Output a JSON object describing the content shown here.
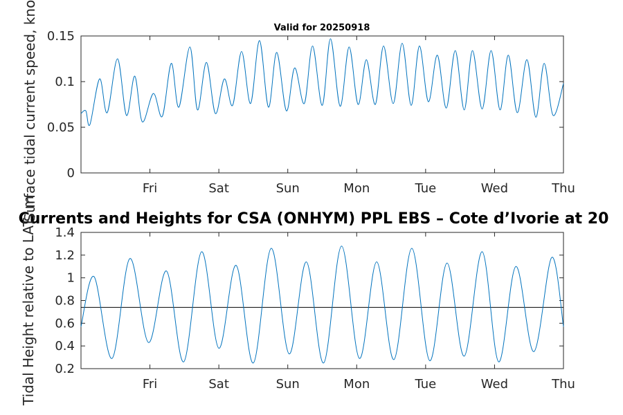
{
  "chart_data": [
    {
      "type": "line",
      "title": "Valid for 20250918",
      "ylabel": "Surface tidal current speed, knots",
      "xtick_labels": [
        "Fri",
        "Sat",
        "Sun",
        "Mon",
        "Tue",
        "Wed",
        "Thu"
      ],
      "xlim": [
        0,
        7
      ],
      "ylim": [
        0,
        0.15
      ],
      "yticks": [
        0,
        0.05,
        0.1,
        0.15
      ],
      "ytick_labels": [
        "0",
        "0.05",
        "0.1",
        "0.15"
      ],
      "grid": false,
      "line_color": "#0072BD",
      "series": [
        {
          "x": [
            0,
            0.07,
            0.13,
            0.27,
            0.38,
            0.53,
            0.66,
            0.78,
            0.89,
            1.05,
            1.18,
            1.31,
            1.42,
            1.58,
            1.69,
            1.82,
            1.95,
            2.08,
            2.2,
            2.33,
            2.46,
            2.59,
            2.72,
            2.84,
            2.98,
            3.1,
            3.24,
            3.36,
            3.5,
            3.62,
            3.76,
            3.89,
            4.02,
            4.14,
            4.27,
            4.39,
            4.53,
            4.66,
            4.79,
            4.91,
            5.04,
            5.17,
            5.3,
            5.43,
            5.56,
            5.68,
            5.82,
            5.95,
            6.08,
            6.2,
            6.33,
            6.47,
            6.6,
            6.72,
            6.85,
            7
          ],
          "y": [
            0.065,
            0.068,
            0.053,
            0.103,
            0.066,
            0.125,
            0.063,
            0.106,
            0.056,
            0.087,
            0.062,
            0.12,
            0.072,
            0.138,
            0.069,
            0.121,
            0.065,
            0.103,
            0.074,
            0.133,
            0.076,
            0.145,
            0.072,
            0.132,
            0.068,
            0.115,
            0.076,
            0.139,
            0.074,
            0.147,
            0.073,
            0.138,
            0.075,
            0.124,
            0.075,
            0.139,
            0.076,
            0.142,
            0.074,
            0.139,
            0.078,
            0.129,
            0.071,
            0.134,
            0.069,
            0.134,
            0.07,
            0.134,
            0.069,
            0.129,
            0.066,
            0.124,
            0.061,
            0.12,
            0.063,
            0.098
          ]
        }
      ]
    },
    {
      "type": "line",
      "title": "Currents and Heights for CSA (ONHYM) PPL EBS  – Cote d’Ivorie at 20",
      "ylabel": "Tidal Height relative to LAT, m",
      "xtick_labels": [
        "Fri",
        "Sat",
        "Sun",
        "Mon",
        "Tue",
        "Wed",
        "Thu"
      ],
      "xlim": [
        0,
        7
      ],
      "ylim": [
        0.2,
        1.4
      ],
      "yticks": [
        0.2,
        0.4,
        0.6,
        0.8,
        1,
        1.2,
        1.4
      ],
      "ytick_labels": [
        "0.2",
        "0.4",
        "0.6",
        "0.8",
        "1",
        "1.2",
        "1.4"
      ],
      "grid": false,
      "line_color": "#0072BD",
      "reference_line": {
        "y": 0.74,
        "color": "#000000"
      },
      "series": [
        {
          "x": [
            0,
            0.19,
            0.45,
            0.71,
            0.98,
            1.24,
            1.49,
            1.75,
            2.0,
            2.25,
            2.5,
            2.76,
            3.02,
            3.27,
            3.52,
            3.78,
            4.04,
            4.29,
            4.54,
            4.8,
            5.06,
            5.31,
            5.56,
            5.82,
            6.06,
            6.31,
            6.57,
            6.83,
            7
          ],
          "y": [
            0.57,
            1.01,
            0.29,
            1.17,
            0.43,
            1.06,
            0.26,
            1.23,
            0.38,
            1.11,
            0.25,
            1.26,
            0.33,
            1.14,
            0.25,
            1.28,
            0.29,
            1.14,
            0.28,
            1.26,
            0.27,
            1.13,
            0.31,
            1.23,
            0.26,
            1.1,
            0.35,
            1.18,
            0.57
          ]
        }
      ]
    }
  ]
}
